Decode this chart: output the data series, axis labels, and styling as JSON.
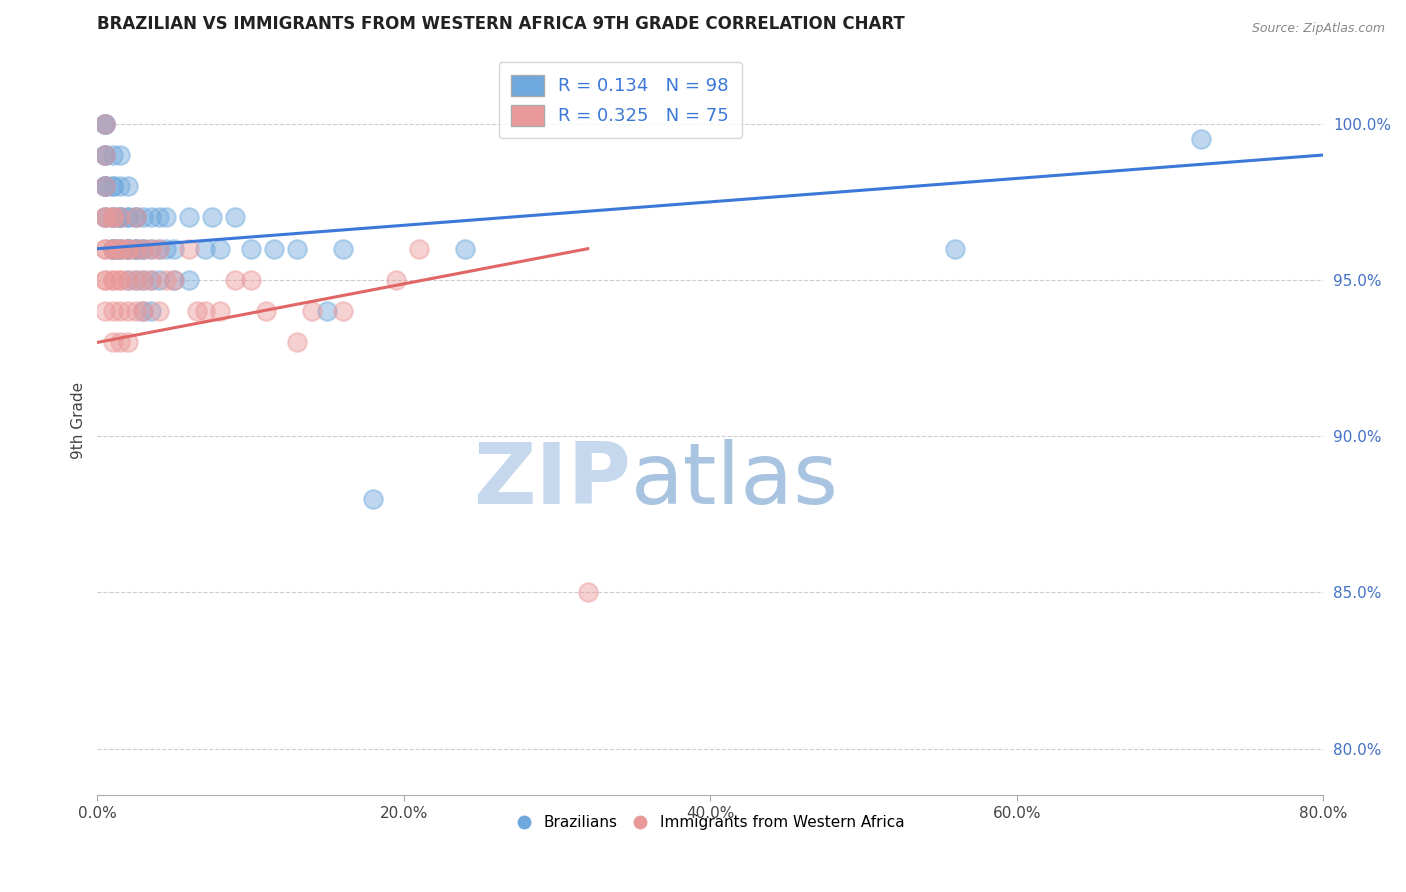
{
  "title": "BRAZILIAN VS IMMIGRANTS FROM WESTERN AFRICA 9TH GRADE CORRELATION CHART",
  "source": "Source: ZipAtlas.com",
  "ylabel": "9th Grade",
  "xlabel_ticks": [
    "0.0%",
    "20.0%",
    "40.0%",
    "60.0%",
    "80.0%"
  ],
  "xlabel_vals": [
    0.0,
    0.2,
    0.4,
    0.6,
    0.8
  ],
  "ylabel_ticks": [
    "80.0%",
    "85.0%",
    "90.0%",
    "95.0%",
    "100.0%"
  ],
  "ylabel_vals": [
    0.8,
    0.85,
    0.9,
    0.95,
    1.0
  ],
  "xlim": [
    0.0,
    0.8
  ],
  "ylim": [
    0.785,
    1.025
  ],
  "R_blue": 0.134,
  "N_blue": 98,
  "R_pink": 0.325,
  "N_pink": 75,
  "blue_color": "#6fa8dc",
  "pink_color": "#ea9999",
  "blue_line_color": "#3c78d8",
  "pink_line_color": "#e06666",
  "title_fontsize": 12,
  "label_fontsize": 11,
  "tick_fontsize": 11,
  "legend_fontsize": 13,
  "blue_line_x0": 0.0,
  "blue_line_y0": 0.96,
  "blue_line_x1": 0.8,
  "blue_line_y1": 0.99,
  "pink_line_x0": 0.0,
  "pink_line_y0": 0.93,
  "pink_line_x1": 0.32,
  "pink_line_y1": 0.96,
  "blue_scatter_x": [
    0.005,
    0.005,
    0.005,
    0.005,
    0.005,
    0.005,
    0.005,
    0.005,
    0.005,
    0.005,
    0.005,
    0.005,
    0.01,
    0.01,
    0.01,
    0.01,
    0.01,
    0.01,
    0.01,
    0.01,
    0.01,
    0.01,
    0.015,
    0.015,
    0.015,
    0.015,
    0.015,
    0.015,
    0.015,
    0.015,
    0.02,
    0.02,
    0.02,
    0.02,
    0.02,
    0.02,
    0.02,
    0.025,
    0.025,
    0.025,
    0.025,
    0.025,
    0.025,
    0.03,
    0.03,
    0.03,
    0.03,
    0.03,
    0.035,
    0.035,
    0.035,
    0.035,
    0.04,
    0.04,
    0.04,
    0.045,
    0.045,
    0.05,
    0.05,
    0.06,
    0.06,
    0.07,
    0.075,
    0.08,
    0.09,
    0.1,
    0.115,
    0.13,
    0.15,
    0.16,
    0.18,
    0.24,
    0.56,
    0.72
  ],
  "blue_scatter_y": [
    1.0,
    1.0,
    1.0,
    0.99,
    0.99,
    0.99,
    0.98,
    0.98,
    0.98,
    0.98,
    0.97,
    0.97,
    0.99,
    0.98,
    0.98,
    0.97,
    0.97,
    0.97,
    0.96,
    0.96,
    0.96,
    0.96,
    0.99,
    0.98,
    0.97,
    0.97,
    0.97,
    0.96,
    0.96,
    0.96,
    0.98,
    0.97,
    0.97,
    0.96,
    0.96,
    0.96,
    0.95,
    0.97,
    0.97,
    0.96,
    0.96,
    0.96,
    0.95,
    0.97,
    0.96,
    0.96,
    0.95,
    0.94,
    0.97,
    0.96,
    0.95,
    0.94,
    0.97,
    0.96,
    0.95,
    0.97,
    0.96,
    0.96,
    0.95,
    0.97,
    0.95,
    0.96,
    0.97,
    0.96,
    0.97,
    0.96,
    0.96,
    0.96,
    0.94,
    0.96,
    0.88,
    0.96,
    0.96,
    0.995
  ],
  "pink_scatter_x": [
    0.005,
    0.005,
    0.005,
    0.005,
    0.005,
    0.005,
    0.005,
    0.005,
    0.005,
    0.005,
    0.01,
    0.01,
    0.01,
    0.01,
    0.01,
    0.01,
    0.01,
    0.01,
    0.015,
    0.015,
    0.015,
    0.015,
    0.015,
    0.015,
    0.015,
    0.02,
    0.02,
    0.02,
    0.02,
    0.02,
    0.025,
    0.025,
    0.025,
    0.025,
    0.03,
    0.03,
    0.03,
    0.035,
    0.035,
    0.04,
    0.04,
    0.045,
    0.05,
    0.06,
    0.065,
    0.07,
    0.08,
    0.09,
    0.1,
    0.11,
    0.13,
    0.14,
    0.16,
    0.195,
    0.21,
    0.32
  ],
  "pink_scatter_y": [
    1.0,
    0.99,
    0.98,
    0.97,
    0.97,
    0.96,
    0.96,
    0.95,
    0.95,
    0.94,
    0.97,
    0.97,
    0.96,
    0.96,
    0.95,
    0.95,
    0.94,
    0.93,
    0.97,
    0.96,
    0.96,
    0.95,
    0.95,
    0.94,
    0.93,
    0.96,
    0.96,
    0.95,
    0.94,
    0.93,
    0.97,
    0.96,
    0.95,
    0.94,
    0.96,
    0.95,
    0.94,
    0.96,
    0.95,
    0.96,
    0.94,
    0.95,
    0.95,
    0.96,
    0.94,
    0.94,
    0.94,
    0.95,
    0.95,
    0.94,
    0.93,
    0.94,
    0.94,
    0.95,
    0.96,
    0.85
  ]
}
